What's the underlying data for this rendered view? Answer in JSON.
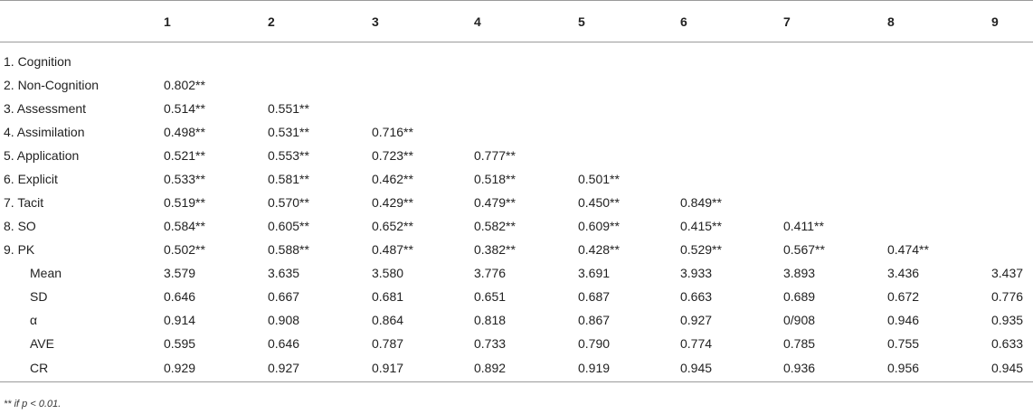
{
  "table": {
    "headers": [
      "",
      "1",
      "2",
      "3",
      "4",
      "5",
      "6",
      "7",
      "8",
      "9"
    ],
    "rows": [
      {
        "label": "1. Cognition",
        "cells": [
          "",
          "",
          "",
          "",
          "",
          "",
          "",
          "",
          ""
        ]
      },
      {
        "label": "2. Non-Cognition",
        "cells": [
          "0.802**",
          "",
          "",
          "",
          "",
          "",
          "",
          "",
          ""
        ]
      },
      {
        "label": "3. Assessment",
        "cells": [
          "0.514**",
          "0.551**",
          "",
          "",
          "",
          "",
          "",
          "",
          ""
        ]
      },
      {
        "label": "4. Assimilation",
        "cells": [
          "0.498**",
          "0.531**",
          "0.716**",
          "",
          "",
          "",
          "",
          "",
          ""
        ]
      },
      {
        "label": "5. Application",
        "cells": [
          "0.521**",
          "0.553**",
          "0.723**",
          "0.777**",
          "",
          "",
          "",
          "",
          ""
        ]
      },
      {
        "label": "6. Explicit",
        "cells": [
          "0.533**",
          "0.581**",
          "0.462**",
          "0.518**",
          "0.501**",
          "",
          "",
          "",
          ""
        ]
      },
      {
        "label": "7. Tacit",
        "cells": [
          "0.519**",
          "0.570**",
          "0.429**",
          "0.479**",
          "0.450**",
          "0.849**",
          "",
          "",
          ""
        ]
      },
      {
        "label": "8. SO",
        "cells": [
          "0.584**",
          "0.605**",
          "0.652**",
          "0.582**",
          "0.609**",
          "0.415**",
          "0.411**",
          "",
          ""
        ]
      },
      {
        "label": "9. PK",
        "cells": [
          "0.502**",
          "0.588**",
          "0.487**",
          "0.382**",
          "0.428**",
          "0.529**",
          "0.567**",
          "0.474**",
          ""
        ]
      },
      {
        "label": "Mean",
        "stat": true,
        "cells": [
          "3.579",
          "3.635",
          "3.580",
          "3.776",
          "3.691",
          "3.933",
          "3.893",
          "3.436",
          "3.437"
        ]
      },
      {
        "label": "SD",
        "stat": true,
        "cells": [
          "0.646",
          "0.667",
          "0.681",
          "0.651",
          "0.687",
          "0.663",
          "0.689",
          "0.672",
          "0.776"
        ]
      },
      {
        "label": "α",
        "stat": true,
        "cells": [
          "0.914",
          "0.908",
          "0.864",
          "0.818",
          "0.867",
          "0.927",
          "0/908",
          "0.946",
          "0.935"
        ]
      },
      {
        "label": "AVE",
        "stat": true,
        "cells": [
          "0.595",
          "0.646",
          "0.787",
          "0.733",
          "0.790",
          "0.774",
          "0.785",
          "0.755",
          "0.633"
        ]
      },
      {
        "label": "CR",
        "stat": true,
        "cells": [
          "0.929",
          "0.927",
          "0.917",
          "0.892",
          "0.919",
          "0.945",
          "0.936",
          "0.956",
          "0.945"
        ]
      }
    ]
  },
  "footnote": "** if p < 0.01."
}
